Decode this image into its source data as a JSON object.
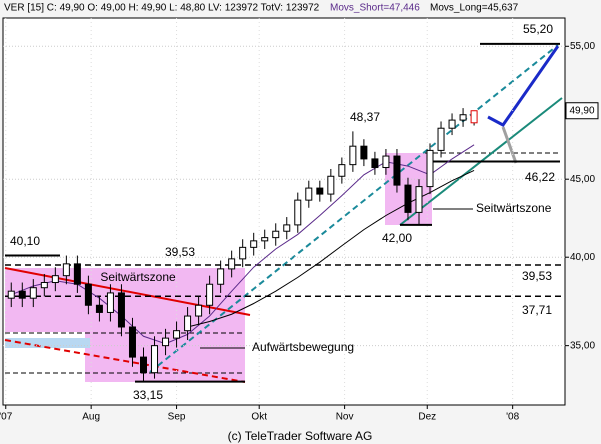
{
  "chart_data": {
    "type": "candlestick",
    "title": "VER [15] C: 49,90 O: 49,00 H: 49,90 L: 48,80 LV: 123972 TotV: 123972",
    "footer": "(c) TeleTrader Software AG",
    "log_scale": true,
    "grid": true,
    "x": [
      2,
      6,
      10,
      14,
      18,
      22,
      26,
      30,
      34,
      38,
      42,
      46,
      50,
      54,
      58,
      62,
      66,
      70,
      74,
      78,
      82,
      86,
      90,
      94,
      98,
      102,
      106,
      110,
      114,
      118,
      122,
      126,
      130,
      134,
      138,
      142,
      146,
      150,
      154,
      158,
      162,
      166,
      170
    ],
    "open": [
      37.6,
      38.0,
      37.6,
      38.2,
      38.5,
      38.9,
      39.6,
      38.4,
      37.2,
      36.8,
      37.9,
      36.0,
      34.4,
      33.6,
      35.0,
      35.4,
      35.8,
      36.6,
      37.2,
      38.4,
      39.3,
      39.9,
      40.6,
      41.0,
      41.2,
      41.6,
      42.0,
      43.6,
      44.4,
      44.0,
      45.2,
      46.0,
      47.3,
      46.4,
      45.8,
      46.6,
      44.6,
      42.8,
      44.5,
      47.0,
      48.6,
      49.2,
      49.0
    ],
    "high": [
      38.5,
      38.5,
      38.7,
      39.0,
      39.4,
      40.1,
      40.1,
      38.9,
      37.7,
      38.4,
      38.4,
      36.5,
      34.9,
      35.5,
      35.9,
      36.3,
      37.1,
      37.7,
      38.9,
      39.8,
      40.4,
      41.1,
      41.5,
      41.7,
      42.1,
      42.5,
      44.1,
      44.9,
      44.9,
      45.7,
      46.5,
      48.37,
      47.8,
      46.9,
      47.1,
      47.1,
      45.1,
      45.0,
      47.5,
      49.1,
      49.7,
      50.1,
      49.9
    ],
    "low": [
      37.1,
      37.1,
      37.1,
      37.7,
      38.0,
      38.4,
      37.9,
      36.7,
      36.3,
      36.3,
      35.5,
      33.9,
      33.15,
      33.3,
      34.5,
      34.9,
      35.3,
      36.1,
      36.7,
      37.9,
      38.8,
      39.4,
      40.1,
      40.5,
      40.7,
      41.1,
      41.5,
      43.1,
      43.5,
      43.5,
      44.7,
      45.5,
      45.9,
      45.3,
      45.3,
      44.1,
      42.3,
      42.0,
      44.0,
      46.5,
      48.1,
      48.7,
      48.8
    ],
    "close": [
      38.0,
      37.6,
      38.2,
      38.5,
      38.9,
      39.6,
      38.4,
      37.2,
      36.8,
      37.9,
      36.0,
      34.4,
      33.6,
      35.0,
      35.4,
      35.8,
      36.6,
      37.2,
      38.4,
      39.3,
      39.9,
      40.6,
      41.0,
      41.2,
      41.6,
      42.0,
      43.6,
      44.4,
      44.0,
      45.2,
      46.0,
      47.3,
      46.4,
      45.8,
      46.6,
      44.6,
      42.8,
      44.5,
      47.0,
      48.6,
      49.2,
      49.6,
      49.9
    ],
    "series": [
      {
        "name": "Movs_Short=47,446",
        "color": "#5a2a8a",
        "x": [
          2,
          10,
          18,
          26,
          34,
          42,
          50,
          58,
          66,
          74,
          82,
          90,
          98,
          106,
          114,
          122,
          130,
          138,
          146,
          154,
          162,
          170
        ],
        "values": [
          37.8,
          38.3,
          38.6,
          38.4,
          37.6,
          36.6,
          35.5,
          35.1,
          35.6,
          36.6,
          38.0,
          39.4,
          40.5,
          41.4,
          42.6,
          43.9,
          45.3,
          46.2,
          45.9,
          45.3,
          46.4,
          47.4
        ]
      },
      {
        "name": "Movs_Long=45,637",
        "color": "#000000",
        "x": [
          66,
          74,
          82,
          90,
          98,
          106,
          114,
          122,
          130,
          138,
          146,
          154,
          162,
          170
        ],
        "values": [
          36.0,
          36.3,
          36.7,
          37.3,
          38.0,
          38.8,
          39.7,
          40.7,
          41.7,
          42.6,
          43.4,
          44.1,
          44.9,
          45.6
        ]
      }
    ],
    "last_price": {
      "value": 49.9,
      "label": "49,90"
    },
    "levels": [
      {
        "value": 55.2,
        "label": "55,20"
      },
      {
        "value": 48.37,
        "label": "48,37"
      },
      {
        "value": 46.22,
        "label": "46,22"
      },
      {
        "value": 42.0,
        "label": "42,00"
      },
      {
        "value": 40.1,
        "label": "40,10"
      },
      {
        "value": 39.53,
        "label": "39,53"
      },
      {
        "value": 37.71,
        "label": "37,71"
      },
      {
        "value": 33.15,
        "label": "33,15"
      }
    ],
    "notes": [
      "Seitwärtszone",
      "Aufwärtsbewegung",
      "Seitwärtszone"
    ],
    "xlim": [
      -1,
      203
    ],
    "ylim": [
      32.0,
      57.4
    ],
    "xticks": [
      {
        "value": 0,
        "label": "'07"
      },
      {
        "value": 31,
        "label": "Aug"
      },
      {
        "value": 62,
        "label": "Sep"
      },
      {
        "value": 92,
        "label": "Okt"
      },
      {
        "value": 123,
        "label": "Nov"
      },
      {
        "value": 153,
        "label": "Dez"
      },
      {
        "value": 184,
        "label": "'08"
      }
    ],
    "yticks": [
      {
        "value": 35,
        "label": "35,00"
      },
      {
        "value": 40,
        "label": "40,00"
      },
      {
        "value": 45,
        "label": "45,00"
      },
      {
        "value": 55,
        "label": "55,00"
      }
    ]
  }
}
